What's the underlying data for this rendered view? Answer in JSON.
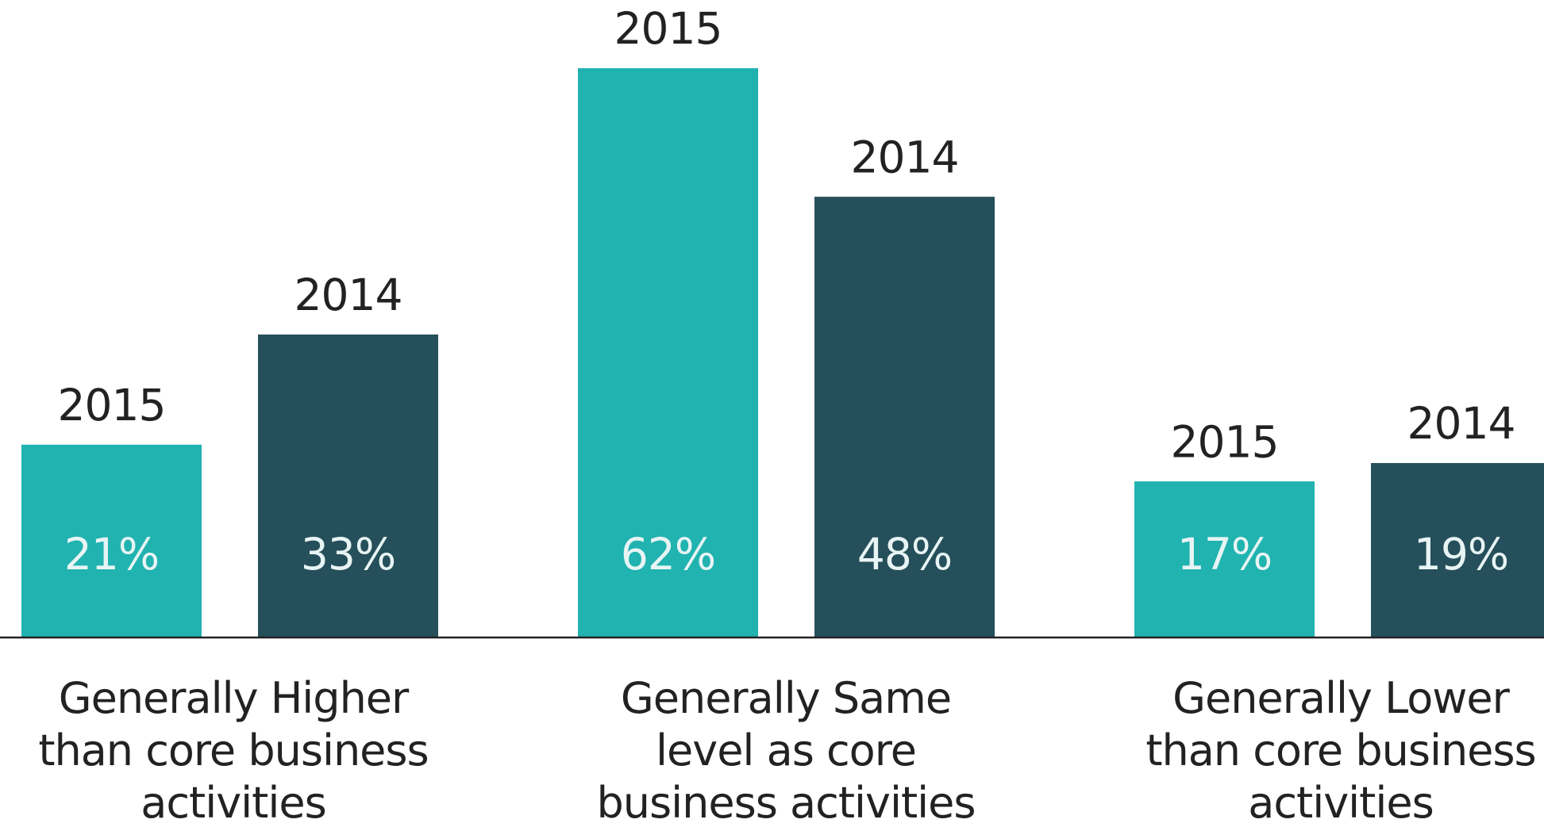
{
  "chart_data": {
    "type": "bar",
    "categories": [
      "Generally Higher than core business activities",
      "Generally Same level as core business activities",
      "Generally Lower than core business activities"
    ],
    "series": [
      {
        "name": "2015",
        "color": "#20b3b0",
        "values": [
          21,
          62,
          17
        ],
        "value_labels": [
          "21%",
          "62%",
          "17%"
        ]
      },
      {
        "name": "2014",
        "color": "#254f5b",
        "values": [
          33,
          48,
          19
        ],
        "value_labels": [
          "33%",
          "48%",
          "19%"
        ]
      }
    ],
    "ylim": [
      0,
      70
    ],
    "grid": false
  }
}
